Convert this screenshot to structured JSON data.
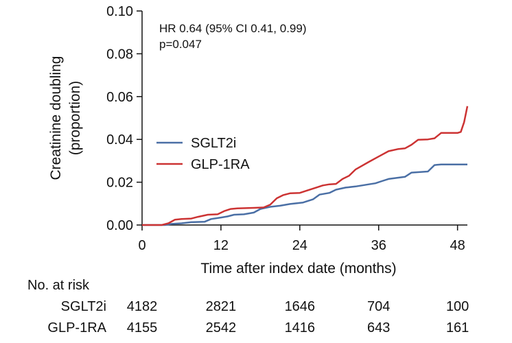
{
  "chart_data": {
    "type": "line",
    "title": "",
    "xlabel": "Time after index date (months)",
    "ylabel_line1": "Creatinine doubling",
    "ylabel_line2": "(proportion)",
    "xlim": [
      0,
      49.5
    ],
    "ylim": [
      0,
      0.1
    ],
    "x_ticks": [
      0,
      12,
      24,
      36,
      48
    ],
    "x_tick_labels": [
      "0",
      "12",
      "24",
      "36",
      "48"
    ],
    "y_ticks": [
      0,
      0.02,
      0.04,
      0.06,
      0.08,
      0.1
    ],
    "y_tick_labels": [
      "0.00",
      "0.02",
      "0.04",
      "0.06",
      "0.08",
      "0.10"
    ],
    "grid": false,
    "legend_position": "center-left",
    "annotation": {
      "line1": "HR 0.64 (95% CI 0.41, 0.99)",
      "line2": "p=0.047"
    },
    "series": [
      {
        "name": "SGLT2i",
        "color": "#4a6fa5",
        "points": [
          [
            0,
            0
          ],
          [
            3.5,
            0
          ],
          [
            4.5,
            0.0005
          ],
          [
            6,
            0.0008
          ],
          [
            7.5,
            0.0013
          ],
          [
            9.5,
            0.0015
          ],
          [
            10.5,
            0.0028
          ],
          [
            12,
            0.0035
          ],
          [
            13,
            0.004
          ],
          [
            14,
            0.0048
          ],
          [
            15.5,
            0.005
          ],
          [
            17,
            0.0058
          ],
          [
            18,
            0.0075
          ],
          [
            19.5,
            0.0085
          ],
          [
            21,
            0.009
          ],
          [
            22.5,
            0.0098
          ],
          [
            24.5,
            0.0105
          ],
          [
            26,
            0.012
          ],
          [
            27,
            0.0142
          ],
          [
            28.5,
            0.015
          ],
          [
            29.5,
            0.0165
          ],
          [
            31,
            0.0175
          ],
          [
            32.5,
            0.018
          ],
          [
            34.5,
            0.019
          ],
          [
            35.5,
            0.0195
          ],
          [
            36.5,
            0.0205
          ],
          [
            37.5,
            0.0215
          ],
          [
            40,
            0.0225
          ],
          [
            41,
            0.0245
          ],
          [
            43.5,
            0.025
          ],
          [
            44.5,
            0.028
          ],
          [
            45.5,
            0.0283
          ],
          [
            49.5,
            0.0283
          ]
        ]
      },
      {
        "name": "GLP-1RA",
        "color": "#cc3333",
        "points": [
          [
            0,
            0
          ],
          [
            3,
            0
          ],
          [
            4,
            0.0008
          ],
          [
            5,
            0.0025
          ],
          [
            6,
            0.0028
          ],
          [
            7.5,
            0.003
          ],
          [
            8.5,
            0.0038
          ],
          [
            10,
            0.0048
          ],
          [
            11.5,
            0.005
          ],
          [
            12.5,
            0.0065
          ],
          [
            13.5,
            0.0075
          ],
          [
            14.5,
            0.0078
          ],
          [
            17,
            0.008
          ],
          [
            18.5,
            0.0082
          ],
          [
            19.5,
            0.0095
          ],
          [
            20.5,
            0.0125
          ],
          [
            21.5,
            0.014
          ],
          [
            22.5,
            0.0148
          ],
          [
            24,
            0.015
          ],
          [
            25,
            0.016
          ],
          [
            26.5,
            0.0175
          ],
          [
            27.5,
            0.0185
          ],
          [
            28.5,
            0.019
          ],
          [
            29.5,
            0.0192
          ],
          [
            30.5,
            0.0215
          ],
          [
            31.5,
            0.023
          ],
          [
            32.5,
            0.026
          ],
          [
            34.5,
            0.0295
          ],
          [
            36,
            0.032
          ],
          [
            37.5,
            0.0345
          ],
          [
            39,
            0.0355
          ],
          [
            40,
            0.0358
          ],
          [
            41,
            0.0375
          ],
          [
            42,
            0.0398
          ],
          [
            43.5,
            0.04
          ],
          [
            44.5,
            0.0405
          ],
          [
            45.5,
            0.043
          ],
          [
            48,
            0.043
          ],
          [
            48.5,
            0.0435
          ],
          [
            49,
            0.048
          ],
          [
            49.5,
            0.0555
          ]
        ]
      }
    ],
    "risk_table": {
      "title": "No. at risk",
      "times": [
        0,
        12,
        24,
        36,
        48
      ],
      "rows": [
        {
          "label": "SGLT2i",
          "values": [
            "4182",
            "2821",
            "1646",
            "704",
            "100"
          ]
        },
        {
          "label": "GLP-1RA",
          "values": [
            "4155",
            "2542",
            "1416",
            "643",
            "161"
          ]
        }
      ]
    }
  }
}
